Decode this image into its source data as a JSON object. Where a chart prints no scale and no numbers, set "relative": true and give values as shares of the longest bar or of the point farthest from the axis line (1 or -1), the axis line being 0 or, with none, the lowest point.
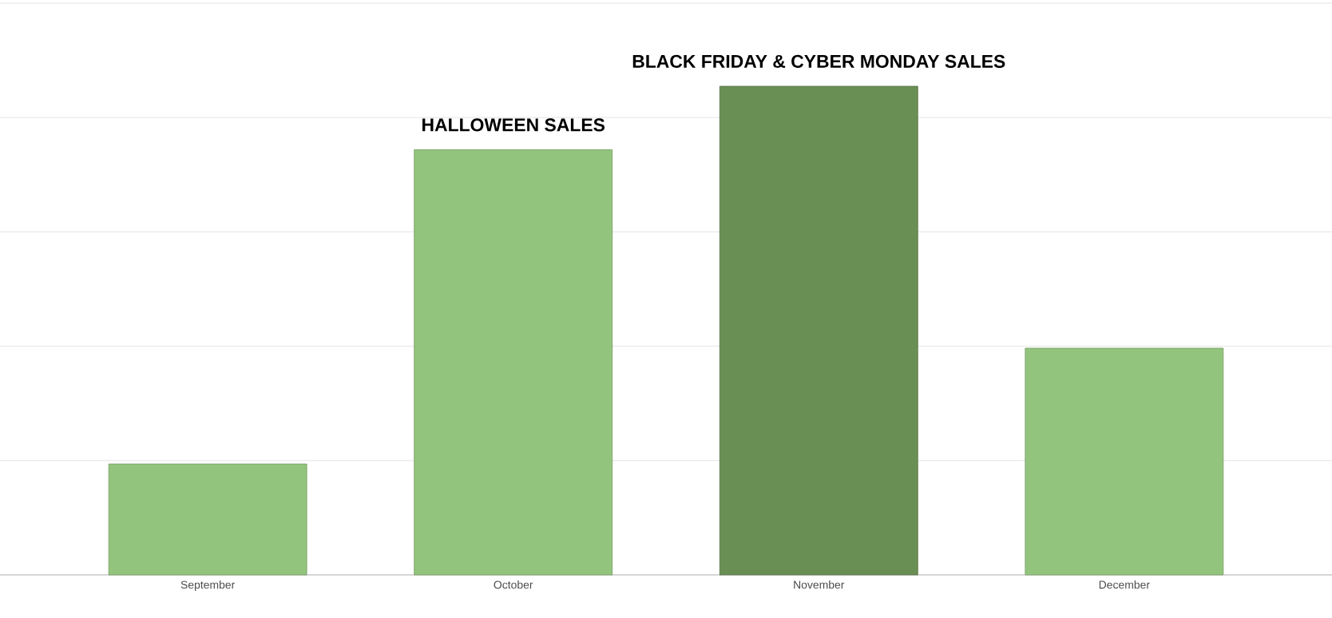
{
  "chart_data": {
    "type": "bar",
    "relative": true,
    "categories": [
      "September",
      "October",
      "November",
      "December"
    ],
    "values": [
      0.227,
      0.87,
      1,
      0.464
    ],
    "colors": [
      "#93c47d",
      "#93c47d",
      "#6a8f55",
      "#93c47d"
    ],
    "grid": "y",
    "annotations": [
      {
        "text": "HALLOWEEN SALES",
        "x": "October",
        "y": 0.87
      },
      {
        "text": "BLACK FRIDAY & CYBER MONDAY SALES",
        "x": "November",
        "y": 1
      }
    ]
  }
}
